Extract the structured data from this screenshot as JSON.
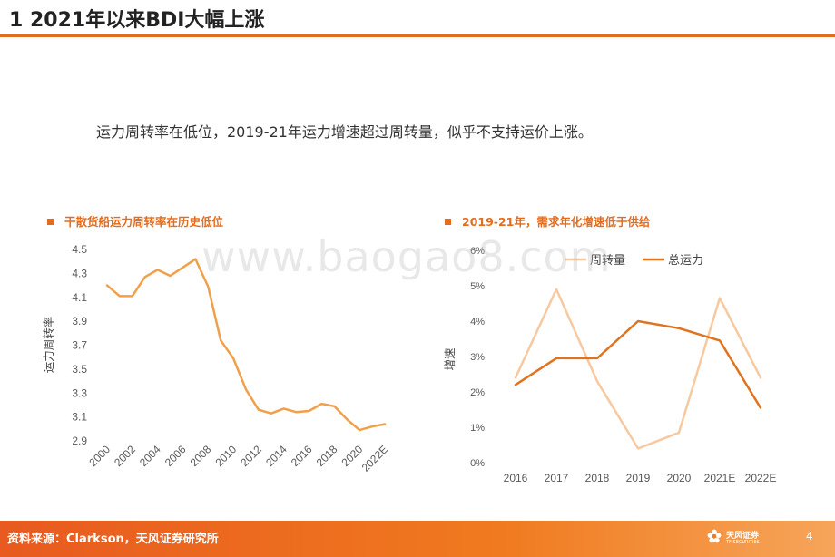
{
  "header": {
    "title": "1 2021年以来BDI大幅上涨"
  },
  "subtitle": "运力周转率在低位，2019-21年运力增速超过周转量，似乎不支持运价上涨。",
  "watermark": "www.baogao8.com",
  "footer": {
    "source": "资料来源：Clarkson，天风证券研究所",
    "logo_text": "天风证券",
    "logo_sub": "TF SECURITIES",
    "page_number": "4"
  },
  "colors": {
    "accent": "#e46c1e",
    "line1": "#f0a04b",
    "light": "#f6c9a0",
    "dark": "#e07320"
  },
  "chart_data": [
    {
      "type": "line",
      "title": "干散货船运力周转率在历史低位",
      "ylabel": "运力周转率",
      "xlabel": "",
      "ylim": [
        2.9,
        4.5
      ],
      "yticks": [
        "4.5",
        "4.3",
        "4.1",
        "3.9",
        "3.7",
        "3.5",
        "3.3",
        "3.1",
        "2.9"
      ],
      "x": [
        "2000",
        "2001",
        "2002",
        "2003",
        "2004",
        "2005",
        "2006",
        "2007",
        "2008",
        "2009",
        "2010",
        "2011",
        "2012",
        "2013",
        "2014",
        "2015",
        "2016",
        "2017",
        "2018",
        "2019",
        "2020",
        "2021",
        "2022E"
      ],
      "xtick_labels": [
        "2000",
        "2002",
        "2004",
        "2006",
        "2008",
        "2010",
        "2012",
        "2014",
        "2016",
        "2018",
        "2020",
        "2022E"
      ],
      "series": [
        {
          "values": [
            4.2,
            4.11,
            4.11,
            4.27,
            4.33,
            4.28,
            4.35,
            4.42,
            4.19,
            3.74,
            3.59,
            3.33,
            3.16,
            3.13,
            3.17,
            3.14,
            3.15,
            3.21,
            3.19,
            3.08,
            2.99,
            3.02,
            3.04
          ]
        }
      ],
      "grid": false,
      "legend": "none"
    },
    {
      "type": "line",
      "title": "2019-21年，需求年化增速低于供给",
      "ylabel": "增速",
      "xlabel": "",
      "ylim": [
        0,
        6
      ],
      "yticks": [
        "6%",
        "5%",
        "4%",
        "3%",
        "2%",
        "1%",
        "0%"
      ],
      "categories": [
        "2016",
        "2017",
        "2018",
        "2019",
        "2020",
        "2021E",
        "2022E"
      ],
      "series": [
        {
          "name": "周转量",
          "values": [
            2.4,
            4.9,
            2.3,
            0.4,
            0.85,
            4.65,
            2.4
          ]
        },
        {
          "name": "总运力",
          "values": [
            2.2,
            2.95,
            2.95,
            4.0,
            3.8,
            3.45,
            1.55
          ]
        }
      ],
      "grid": false,
      "legend": "top-right"
    }
  ]
}
